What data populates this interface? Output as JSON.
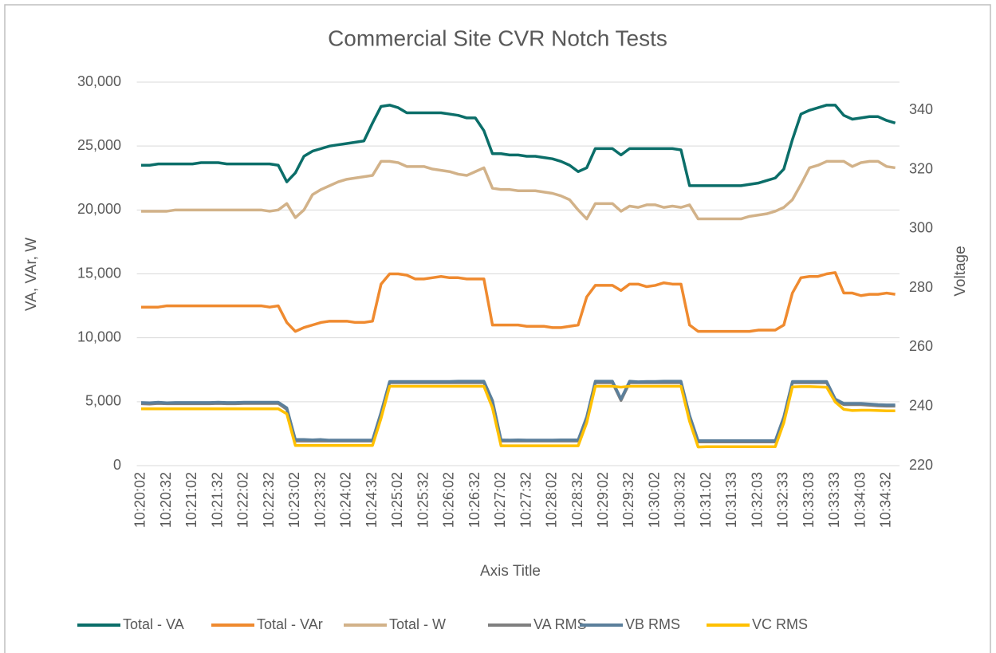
{
  "chart_data": {
    "type": "line",
    "title": "Commercial Site CVR Notch Tests",
    "x_label": "Axis Title",
    "y_label": "VA, VAr, W",
    "y2_label": "Voltage",
    "grid": true,
    "legend": "bottom",
    "ylim": [
      0,
      30000
    ],
    "yticks": [
      0,
      {
        "value": 5000,
        "label": "5,000"
      },
      {
        "value": 10000,
        "label": "10,000"
      },
      {
        "value": 15000,
        "label": "15,000"
      },
      {
        "value": 20000,
        "label": "20,000"
      },
      {
        "value": 25000,
        "label": "25,000"
      },
      {
        "value": 30000,
        "label": "30,000"
      }
    ],
    "y2lim": [
      220,
      349.5
    ],
    "y2ticks": [
      220,
      240,
      260,
      280,
      300,
      320,
      340
    ],
    "categories": [
      "10:20:02",
      null,
      null,
      "10:20:32",
      null,
      null,
      "10:21:02",
      null,
      null,
      "10:21:32",
      null,
      null,
      "10:22:02",
      null,
      null,
      "10:22:32",
      null,
      null,
      "10:23:02",
      null,
      null,
      "10:23:32",
      null,
      null,
      "10:24:02",
      null,
      null,
      "10:24:32",
      null,
      null,
      "10:25:02",
      null,
      null,
      "10:25:32",
      null,
      null,
      "10:26:02",
      null,
      null,
      "10:26:32",
      null,
      null,
      "10:27:02",
      null,
      null,
      "10:27:32",
      null,
      null,
      "10:28:02",
      null,
      null,
      "10:28:32",
      null,
      null,
      "10:29:02",
      null,
      null,
      "10:29:32",
      null,
      null,
      "10:30:02",
      null,
      null,
      "10:30:32",
      null,
      null,
      "10:31:02",
      null,
      null,
      "10:31:33",
      null,
      null,
      "10:32:03",
      null,
      null,
      "10:32:33",
      null,
      null,
      "10:33:03",
      null,
      null,
      "10:33:33",
      null,
      null,
      "10:34:03",
      null,
      null,
      "10:34:32",
      null
    ],
    "series": [
      {
        "name": "Total - VA",
        "color": "#0b6e69",
        "values": [
          23500,
          23500,
          23600,
          23600,
          23600,
          23600,
          23600,
          23700,
          23700,
          23700,
          23600,
          23600,
          23600,
          23600,
          23600,
          23600,
          23500,
          22200,
          22900,
          24200,
          24600,
          24800,
          25000,
          25100,
          25200,
          25300,
          25400,
          26800,
          28100,
          28200,
          28000,
          27600,
          27600,
          27600,
          27600,
          27600,
          27500,
          27400,
          27200,
          27200,
          26200,
          24400,
          24400,
          24300,
          24300,
          24200,
          24200,
          24100,
          24000,
          23800,
          23500,
          23000,
          23300,
          24800,
          24800,
          24800,
          24300,
          24800,
          24800,
          24800,
          24800,
          24800,
          24800,
          24700,
          21900,
          21900,
          21900,
          21900,
          21900,
          21900,
          21900,
          22000,
          22100,
          22300,
          22500,
          23200,
          25500,
          27500,
          27800,
          28000,
          28200,
          28200,
          27400,
          27100,
          27200,
          27300,
          27300,
          27000,
          26800
        ]
      },
      {
        "name": "Total - VAr",
        "color": "#ef8a2f",
        "values": [
          12400,
          12400,
          12400,
          12500,
          12500,
          12500,
          12500,
          12500,
          12500,
          12500,
          12500,
          12500,
          12500,
          12500,
          12500,
          12400,
          12500,
          11200,
          10500,
          10800,
          11000,
          11200,
          11300,
          11300,
          11300,
          11200,
          11200,
          11300,
          14200,
          15000,
          15000,
          14900,
          14600,
          14600,
          14700,
          14800,
          14700,
          14700,
          14600,
          14600,
          14600,
          11000,
          11000,
          11000,
          11000,
          10900,
          10900,
          10900,
          10800,
          10800,
          10900,
          11000,
          13200,
          14100,
          14100,
          14100,
          13700,
          14200,
          14200,
          14000,
          14100,
          14300,
          14200,
          14200,
          11000,
          10500,
          10500,
          10500,
          10500,
          10500,
          10500,
          10500,
          10600,
          10600,
          10600,
          11000,
          13500,
          14700,
          14800,
          14800,
          15000,
          15100,
          13500,
          13500,
          13300,
          13400,
          13400,
          13500,
          13400
        ]
      },
      {
        "name": "Total - W",
        "color": "#d2b289",
        "values": [
          19900,
          19900,
          19900,
          19900,
          20000,
          20000,
          20000,
          20000,
          20000,
          20000,
          20000,
          20000,
          20000,
          20000,
          20000,
          19900,
          20000,
          20500,
          19400,
          20000,
          21200,
          21600,
          21900,
          22200,
          22400,
          22500,
          22600,
          22700,
          23800,
          23800,
          23700,
          23400,
          23400,
          23400,
          23200,
          23100,
          23000,
          22800,
          22700,
          23000,
          23300,
          21700,
          21600,
          21600,
          21500,
          21500,
          21500,
          21400,
          21300,
          21100,
          20800,
          20000,
          19300,
          20500,
          20500,
          20500,
          19900,
          20300,
          20200,
          20400,
          20400,
          20200,
          20300,
          20200,
          20400,
          19300,
          19300,
          19300,
          19300,
          19300,
          19300,
          19500,
          19600,
          19700,
          19900,
          20200,
          20800,
          22000,
          23300,
          23500,
          23800,
          23800,
          23800,
          23400,
          23700,
          23800,
          23800,
          23400,
          23300
        ]
      },
      {
        "name": "VA RMS",
        "color": "#7f7f7f",
        "axis": "y2",
        "values": [
          240.9,
          240.8,
          241.0,
          240.9,
          240.9,
          240.9,
          240.9,
          240.9,
          240.9,
          241.0,
          240.9,
          240.9,
          241.0,
          241.0,
          241.0,
          241.0,
          241.0,
          239.0,
          228.3,
          228.3,
          228.3,
          228.3,
          228.3,
          228.3,
          228.3,
          228.3,
          228.3,
          228.3,
          237.6,
          248.0,
          248.0,
          248.0,
          248.0,
          248.0,
          248.0,
          248.0,
          248.0,
          248.0,
          248.0,
          248.0,
          248.0,
          241.6,
          228.3,
          228.3,
          228.3,
          228.3,
          228.3,
          228.3,
          228.3,
          228.3,
          228.3,
          228.3,
          236.1,
          248.0,
          248.0,
          248.0,
          242.0,
          248.0,
          248.0,
          248.0,
          248.0,
          248.0,
          248.0,
          248.0,
          236.6,
          228.0,
          228.0,
          228.0,
          228.0,
          228.0,
          228.0,
          228.0,
          228.0,
          228.0,
          228.0,
          236.1,
          248.0,
          248.0,
          248.0,
          248.0,
          248.0,
          242.1,
          240.6,
          240.6,
          240.6,
          240.4,
          240.2,
          240.1,
          240.1
        ]
      },
      {
        "name": "VB RMS",
        "color": "#5b7f9b",
        "axis": "y2",
        "values": [
          241.3,
          241.2,
          241.4,
          241.2,
          241.3,
          241.3,
          241.3,
          241.3,
          241.3,
          241.4,
          241.3,
          241.3,
          241.4,
          241.4,
          241.4,
          241.4,
          241.4,
          239.5,
          228.8,
          228.8,
          228.7,
          228.8,
          228.6,
          228.6,
          228.6,
          228.6,
          228.6,
          228.6,
          238.0,
          248.4,
          248.4,
          248.4,
          248.4,
          248.4,
          248.4,
          248.4,
          248.4,
          248.5,
          248.5,
          248.5,
          248.5,
          242.0,
          228.7,
          228.6,
          228.7,
          228.6,
          228.6,
          228.6,
          228.6,
          228.7,
          228.7,
          228.7,
          236.5,
          248.5,
          248.5,
          248.5,
          242.5,
          248.5,
          248.3,
          248.4,
          248.4,
          248.5,
          248.5,
          248.5,
          237.0,
          228.4,
          228.4,
          228.4,
          228.4,
          228.4,
          228.4,
          228.4,
          228.4,
          228.4,
          228.4,
          236.5,
          248.4,
          248.4,
          248.4,
          248.4,
          248.4,
          242.5,
          241.0,
          241.0,
          241.0,
          240.8,
          240.6,
          240.5,
          240.5
        ]
      },
      {
        "name": "VC RMS",
        "color": "#ffc000",
        "axis": "y2",
        "values": [
          239.2,
          239.2,
          239.2,
          239.2,
          239.2,
          239.2,
          239.2,
          239.2,
          239.2,
          239.2,
          239.2,
          239.2,
          239.2,
          239.2,
          239.2,
          239.2,
          239.2,
          237.5,
          226.8,
          226.8,
          226.8,
          226.8,
          226.8,
          226.8,
          226.8,
          226.8,
          226.8,
          226.8,
          236.0,
          246.8,
          246.8,
          246.8,
          246.8,
          246.8,
          246.8,
          246.8,
          246.8,
          246.8,
          246.8,
          246.8,
          246.8,
          239.5,
          226.7,
          226.7,
          226.7,
          226.7,
          226.7,
          226.7,
          226.7,
          226.7,
          226.7,
          226.7,
          234.5,
          246.8,
          246.8,
          246.8,
          246.5,
          246.8,
          246.8,
          246.8,
          246.8,
          246.8,
          246.8,
          246.8,
          235.0,
          226.3,
          226.4,
          226.4,
          226.4,
          226.4,
          226.4,
          226.4,
          226.4,
          226.4,
          226.4,
          234.5,
          246.6,
          246.7,
          246.7,
          246.6,
          246.5,
          241.5,
          239.0,
          238.6,
          238.7,
          238.7,
          238.6,
          238.5,
          238.5
        ]
      }
    ]
  }
}
